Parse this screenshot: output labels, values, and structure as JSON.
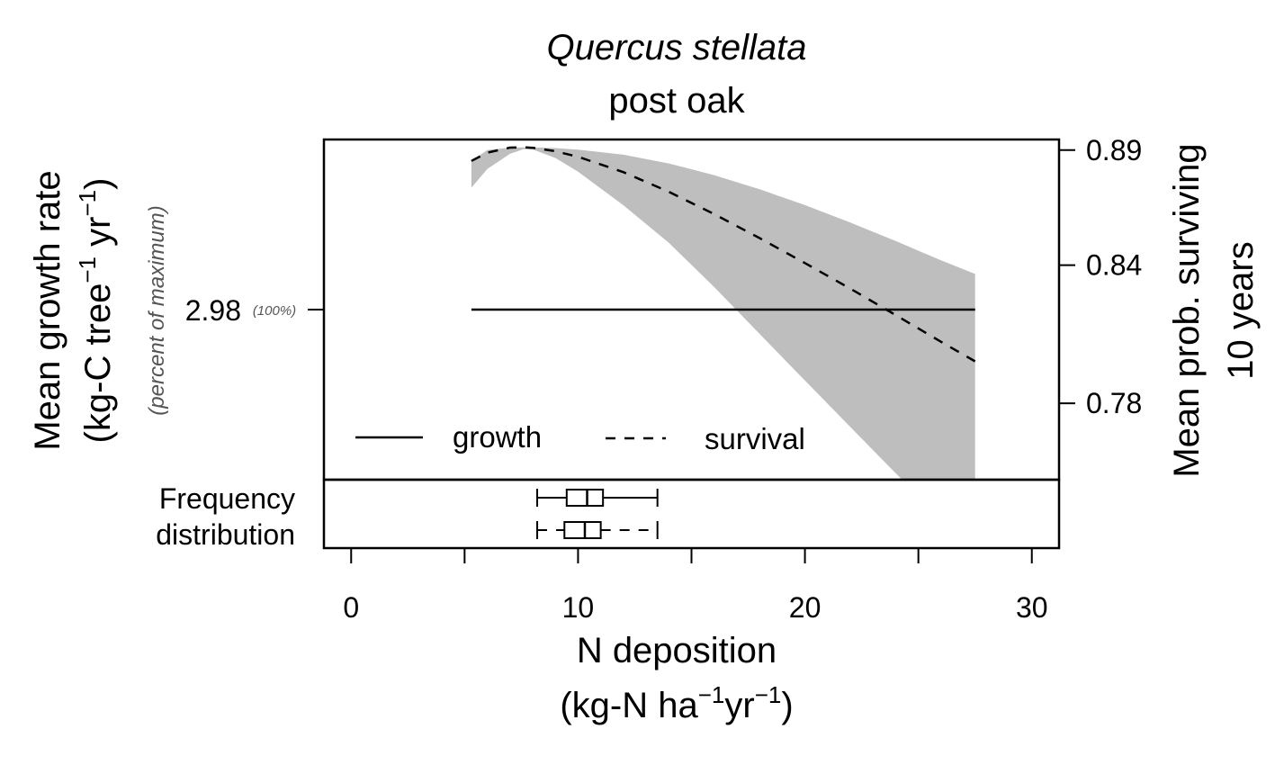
{
  "chart_data": {
    "type": "line",
    "title": "Quercus stellata",
    "subtitle": "post oak",
    "xlabel_line1": "N deposition",
    "xlabel_line2": {
      "open": "(kg-N ha",
      "sup1": "−1",
      "mid": "yr",
      "sup2": "−1",
      "close": ")"
    },
    "xlim": [
      -1.2,
      31.2
    ],
    "xticks": [
      0,
      5,
      10,
      15,
      20,
      25,
      30
    ],
    "xtick_labels": [
      "0",
      "10",
      "20",
      "30"
    ],
    "xtick_label_values": [
      0,
      10,
      20,
      30
    ],
    "left_axis": {
      "label_line1": "Mean growth rate",
      "label_line2": {
        "open": "(kg-C tree",
        "sup1": "−1",
        "mid": " yr",
        "sup2": "−1",
        "close": ")"
      },
      "note": "(percent of maximum)",
      "tick_value": 2.98,
      "tick_label": "2.98",
      "tick_pct": "(100%)"
    },
    "right_axis": {
      "label_line1": "Mean prob. surviving",
      "label_line2": "10 years",
      "ylim": [
        0.7468,
        0.8946
      ],
      "ticks": [
        0.78,
        0.84,
        0.89
      ],
      "tick_labels": [
        "0.78",
        "0.84",
        "0.89"
      ]
    },
    "series": [
      {
        "name": "growth",
        "style": "solid",
        "x": [
          5.3,
          27.5
        ],
        "y": [
          2.98,
          2.98
        ]
      },
      {
        "name": "survival",
        "style": "dashed",
        "x": [
          5.3,
          6.0,
          7.0,
          7.6,
          8.0,
          9.0,
          10.0,
          12.0,
          14.0,
          16.0,
          18.0,
          20.0,
          22.0,
          24.0,
          26.0,
          27.5
        ],
        "y": [
          0.8853,
          0.8889,
          0.8911,
          0.8912,
          0.891,
          0.8895,
          0.8871,
          0.8804,
          0.8719,
          0.8622,
          0.8518,
          0.8409,
          0.8298,
          0.8183,
          0.8067,
          0.7982
        ],
        "band_upper": [
          0.8853,
          0.89,
          0.8911,
          0.8912,
          0.8912,
          0.8909,
          0.8902,
          0.888,
          0.8842,
          0.8791,
          0.873,
          0.8661,
          0.8585,
          0.8505,
          0.8421,
          0.8362
        ],
        "band_lower": [
          0.8737,
          0.8818,
          0.8884,
          0.8904,
          0.8903,
          0.8866,
          0.8806,
          0.866,
          0.8497,
          0.8305,
          0.8102,
          0.7899,
          0.7697,
          0.7496,
          0.73,
          0.72
        ]
      }
    ],
    "band_color": "#bebebe",
    "frequency_label_line1": "Frequency",
    "frequency_label_line2": "distribution",
    "boxplots": [
      {
        "name": "growth",
        "style": "solid",
        "min": 8.2,
        "q1": 9.5,
        "median": 10.4,
        "q3": 11.1,
        "max": 13.5
      },
      {
        "name": "survival",
        "style": "dashed",
        "min": 8.2,
        "q1": 9.4,
        "median": 10.3,
        "q3": 11.0,
        "max": 13.5
      }
    ],
    "legend": [
      {
        "name": "growth",
        "style": "solid"
      },
      {
        "name": "survival",
        "style": "dashed"
      }
    ],
    "legend_position": "bottom-left",
    "grid": false
  }
}
